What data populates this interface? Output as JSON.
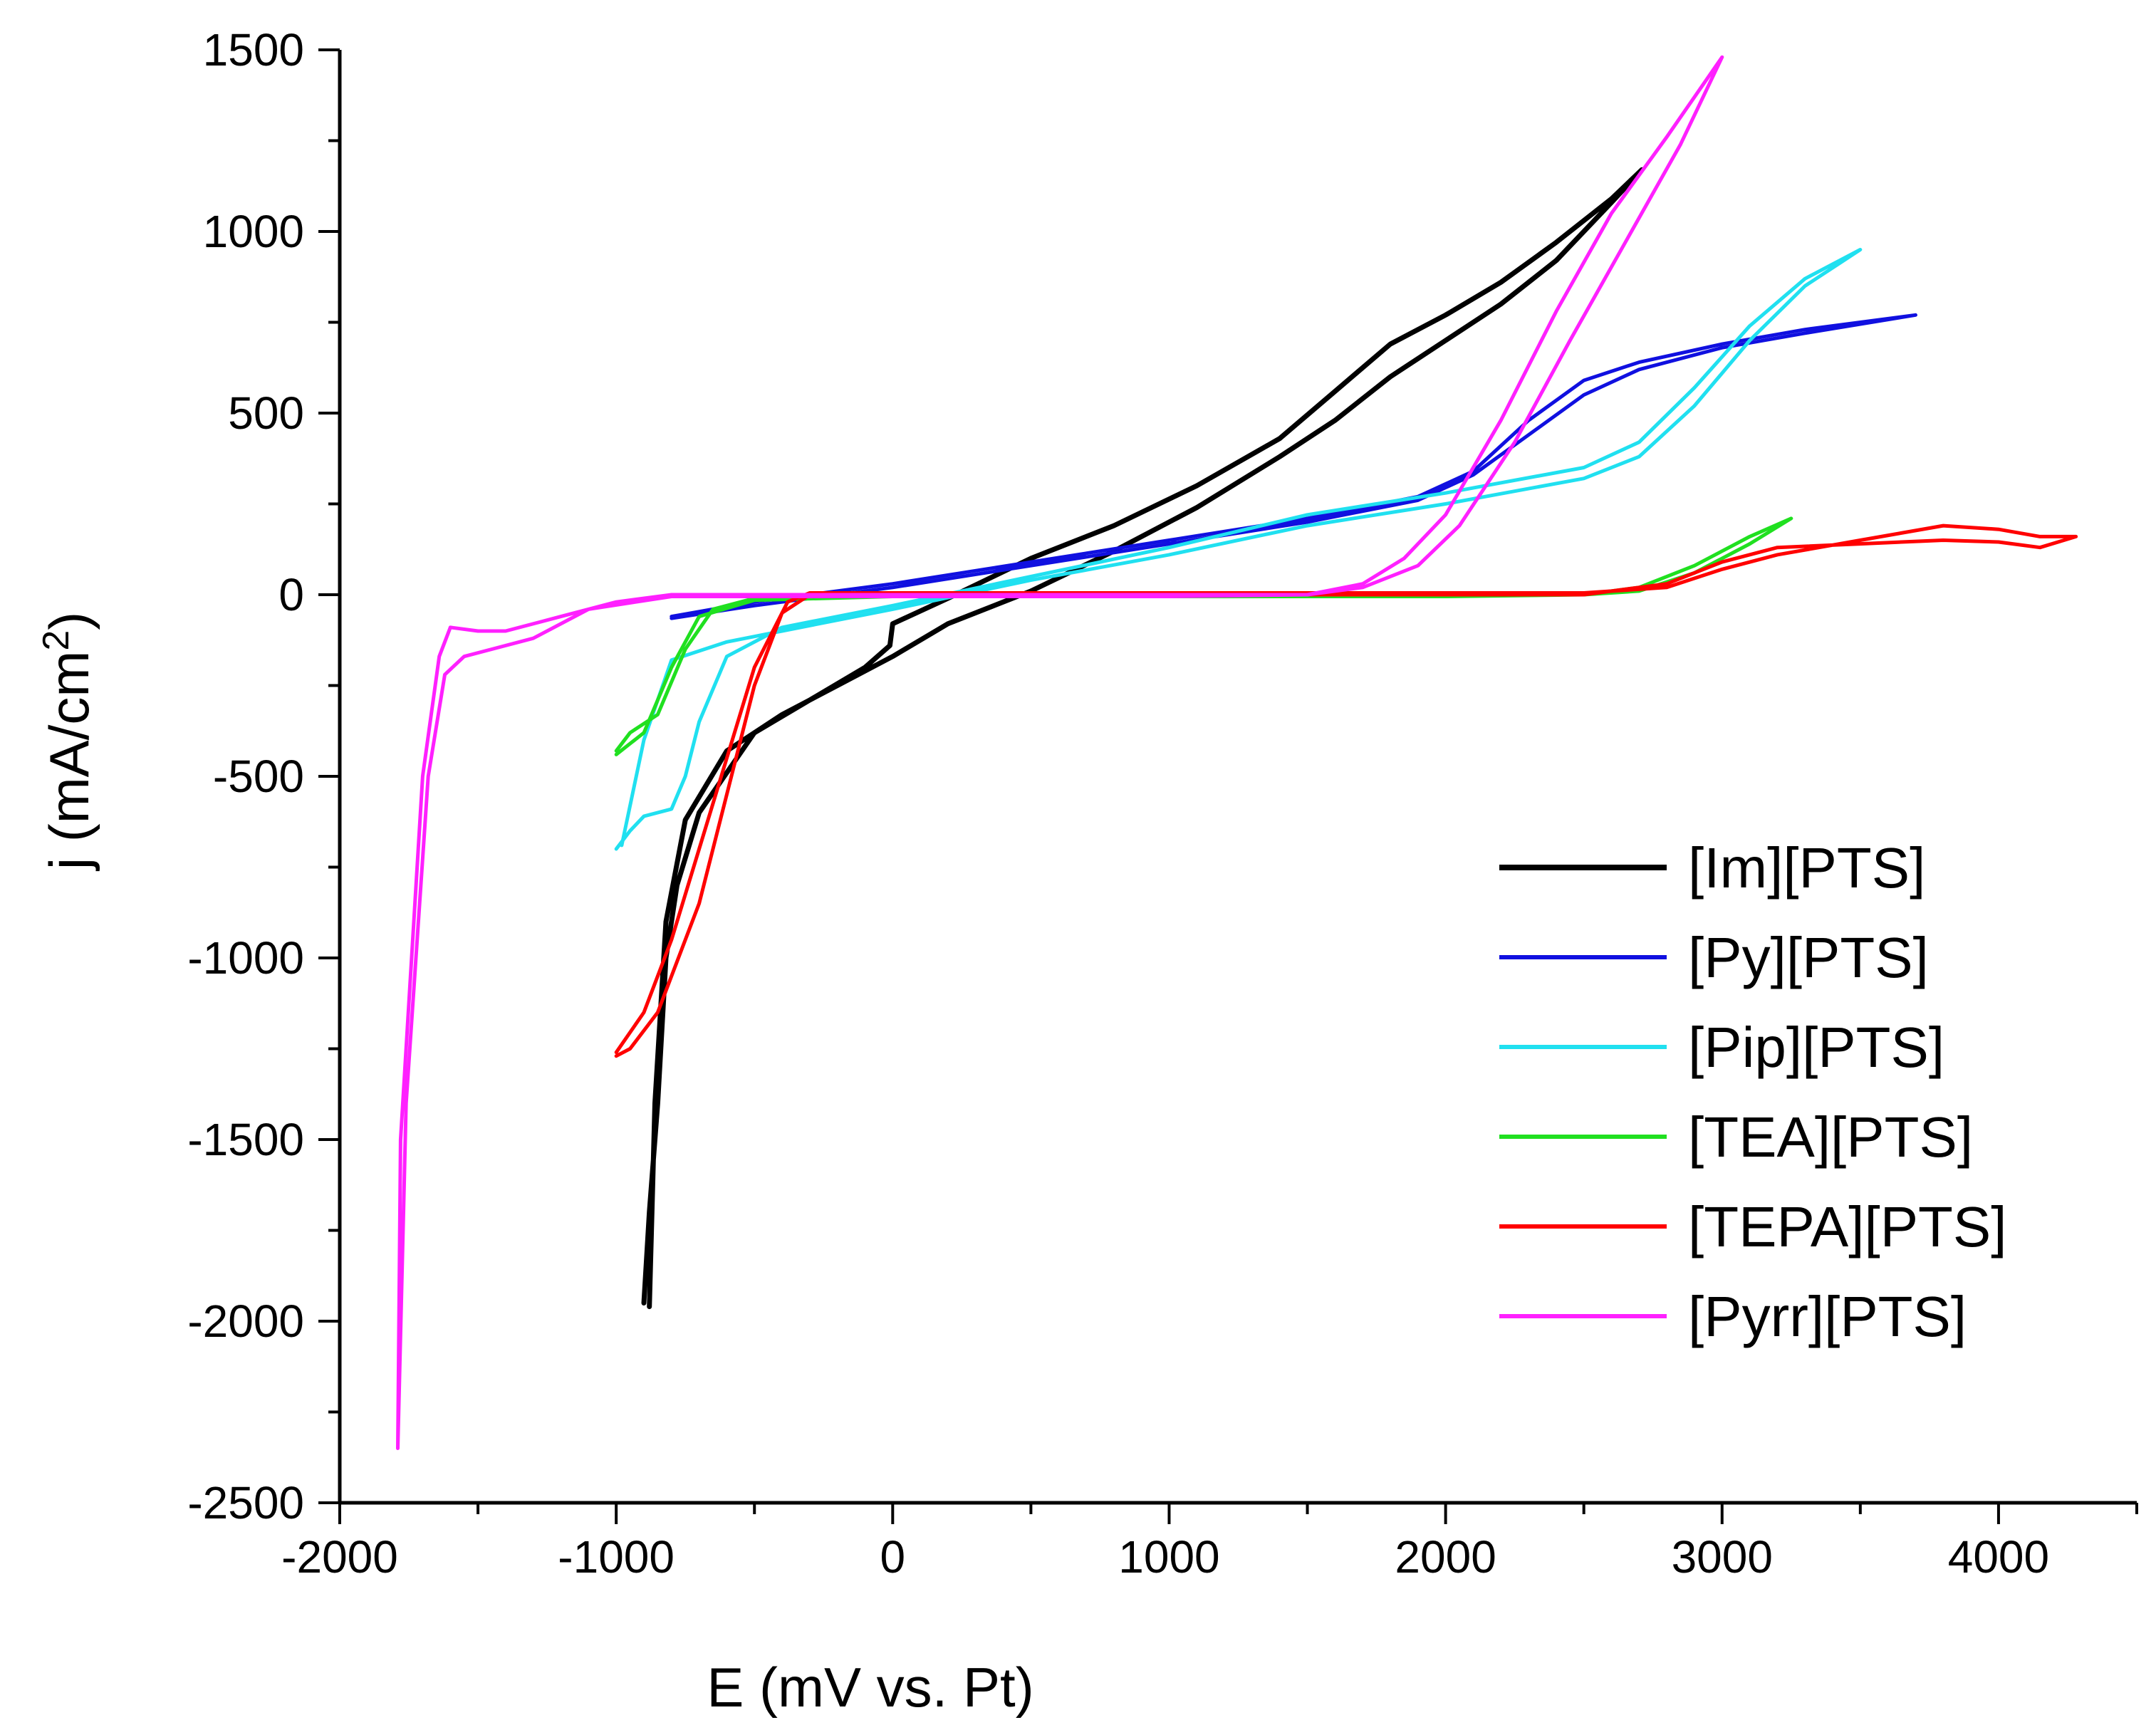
{
  "chart_data": {
    "type": "line",
    "title": "",
    "xlabel": "E (mV vs. Pt)",
    "ylabel": {
      "prefix": "j (mA/cm",
      "sup": "2",
      "suffix": ")"
    },
    "xlim": [
      -2000,
      4500
    ],
    "ylim": [
      -2500,
      1500
    ],
    "x_ticks": [
      -2000,
      -1000,
      0,
      1000,
      2000,
      3000,
      4000
    ],
    "y_ticks": [
      -2500,
      -2000,
      -1500,
      -1000,
      -500,
      0,
      500,
      1000,
      1500
    ],
    "legend_position": "right-lower",
    "series": [
      {
        "name": "[Im][PTS]",
        "color": "#000000",
        "width": 7,
        "points": [
          [
            -900,
            -1950
          ],
          [
            -880,
            -1700
          ],
          [
            -850,
            -1400
          ],
          [
            -820,
            -1000
          ],
          [
            -780,
            -800
          ],
          [
            -700,
            -600
          ],
          [
            -500,
            -380
          ],
          [
            -300,
            -290
          ],
          [
            -100,
            -200
          ],
          [
            -10,
            -140
          ],
          [
            0,
            -80
          ],
          [
            200,
            -10
          ],
          [
            500,
            100
          ],
          [
            800,
            190
          ],
          [
            1100,
            300
          ],
          [
            1400,
            430
          ],
          [
            1600,
            560
          ],
          [
            1800,
            690
          ],
          [
            2000,
            770
          ],
          [
            2200,
            860
          ],
          [
            2400,
            970
          ],
          [
            2600,
            1090
          ],
          [
            2710,
            1170
          ],
          [
            2600,
            1080
          ],
          [
            2400,
            920
          ],
          [
            2200,
            800
          ],
          [
            2000,
            700
          ],
          [
            1800,
            600
          ],
          [
            1600,
            480
          ],
          [
            1400,
            380
          ],
          [
            1100,
            240
          ],
          [
            800,
            120
          ],
          [
            500,
            10
          ],
          [
            200,
            -80
          ],
          [
            0,
            -170
          ],
          [
            -200,
            -250
          ],
          [
            -400,
            -330
          ],
          [
            -600,
            -430
          ],
          [
            -750,
            -620
          ],
          [
            -820,
            -900
          ],
          [
            -860,
            -1400
          ],
          [
            -880,
            -1960
          ]
        ]
      },
      {
        "name": "[Py][PTS]",
        "color": "#1010e0",
        "width": 5,
        "points": [
          [
            -800,
            -60
          ],
          [
            -500,
            -20
          ],
          [
            0,
            30
          ],
          [
            500,
            90
          ],
          [
            1000,
            150
          ],
          [
            1500,
            210
          ],
          [
            1900,
            270
          ],
          [
            2100,
            340
          ],
          [
            2300,
            480
          ],
          [
            2500,
            590
          ],
          [
            2700,
            640
          ],
          [
            3000,
            690
          ],
          [
            3300,
            730
          ],
          [
            3700,
            770
          ],
          [
            3300,
            720
          ],
          [
            3000,
            680
          ],
          [
            2700,
            620
          ],
          [
            2500,
            550
          ],
          [
            2300,
            440
          ],
          [
            2100,
            330
          ],
          [
            1900,
            260
          ],
          [
            1500,
            200
          ],
          [
            1000,
            140
          ],
          [
            500,
            80
          ],
          [
            0,
            20
          ],
          [
            -500,
            -30
          ],
          [
            -800,
            -65
          ]
        ]
      },
      {
        "name": "[Pip][PTS]",
        "color": "#20e0f0",
        "width": 5,
        "points": [
          [
            -1000,
            -700
          ],
          [
            -950,
            -650
          ],
          [
            -900,
            -610
          ],
          [
            -800,
            -590
          ],
          [
            -750,
            -500
          ],
          [
            -700,
            -350
          ],
          [
            -600,
            -170
          ],
          [
            -400,
            -90
          ],
          [
            0,
            -30
          ],
          [
            500,
            50
          ],
          [
            1000,
            130
          ],
          [
            1500,
            220
          ],
          [
            2000,
            280
          ],
          [
            2500,
            350
          ],
          [
            2700,
            420
          ],
          [
            2900,
            570
          ],
          [
            3100,
            740
          ],
          [
            3300,
            870
          ],
          [
            3500,
            950
          ],
          [
            3300,
            850
          ],
          [
            3100,
            700
          ],
          [
            2900,
            520
          ],
          [
            2700,
            380
          ],
          [
            2500,
            320
          ],
          [
            2000,
            250
          ],
          [
            1500,
            190
          ],
          [
            1000,
            110
          ],
          [
            500,
            40
          ],
          [
            0,
            -40
          ],
          [
            -400,
            -100
          ],
          [
            -600,
            -130
          ],
          [
            -800,
            -180
          ],
          [
            -900,
            -400
          ],
          [
            -980,
            -690
          ]
        ]
      },
      {
        "name": "[TEA][PTS]",
        "color": "#20e020",
        "width": 5,
        "points": [
          [
            -1000,
            -430
          ],
          [
            -950,
            -380
          ],
          [
            -850,
            -330
          ],
          [
            -750,
            -150
          ],
          [
            -650,
            -40
          ],
          [
            -500,
            -10
          ],
          [
            0,
            0
          ],
          [
            1000,
            0
          ],
          [
            2000,
            0
          ],
          [
            2500,
            0
          ],
          [
            2700,
            20
          ],
          [
            2900,
            80
          ],
          [
            3100,
            160
          ],
          [
            3250,
            210
          ],
          [
            3100,
            140
          ],
          [
            2900,
            60
          ],
          [
            2700,
            10
          ],
          [
            2500,
            0
          ],
          [
            2000,
            -5
          ],
          [
            1000,
            -5
          ],
          [
            0,
            -5
          ],
          [
            -500,
            -15
          ],
          [
            -700,
            -60
          ],
          [
            -800,
            -200
          ],
          [
            -900,
            -380
          ],
          [
            -1000,
            -440
          ]
        ]
      },
      {
        "name": "[TEPA][PTS]",
        "color": "#ff0000",
        "width": 5,
        "points": [
          [
            -1000,
            -1270
          ],
          [
            -950,
            -1250
          ],
          [
            -850,
            -1150
          ],
          [
            -700,
            -850
          ],
          [
            -600,
            -550
          ],
          [
            -500,
            -250
          ],
          [
            -400,
            -50
          ],
          [
            -300,
            0
          ],
          [
            500,
            0
          ],
          [
            1500,
            0
          ],
          [
            2500,
            0
          ],
          [
            2800,
            30
          ],
          [
            3000,
            90
          ],
          [
            3200,
            130
          ],
          [
            3500,
            140
          ],
          [
            3800,
            150
          ],
          [
            4000,
            145
          ],
          [
            4150,
            130
          ],
          [
            4280,
            160
          ],
          [
            4150,
            160
          ],
          [
            4000,
            180
          ],
          [
            3800,
            190
          ],
          [
            3500,
            150
          ],
          [
            3200,
            110
          ],
          [
            3000,
            70
          ],
          [
            2800,
            20
          ],
          [
            2500,
            5
          ],
          [
            1500,
            5
          ],
          [
            500,
            5
          ],
          [
            -300,
            5
          ],
          [
            -380,
            -20
          ],
          [
            -500,
            -200
          ],
          [
            -600,
            -450
          ],
          [
            -700,
            -700
          ],
          [
            -800,
            -950
          ],
          [
            -900,
            -1150
          ],
          [
            -1000,
            -1260
          ]
        ]
      },
      {
        "name": "[Pyrr][PTS]",
        "color": "#ff20ff",
        "width": 5,
        "points": [
          [
            -1790,
            -2350
          ],
          [
            -1780,
            -1500
          ],
          [
            -1700,
            -500
          ],
          [
            -1640,
            -170
          ],
          [
            -1600,
            -90
          ],
          [
            -1500,
            -100
          ],
          [
            -1400,
            -100
          ],
          [
            -1200,
            -60
          ],
          [
            -1000,
            -20
          ],
          [
            -800,
            0
          ],
          [
            0,
            0
          ],
          [
            1000,
            0
          ],
          [
            1500,
            0
          ],
          [
            1700,
            30
          ],
          [
            1850,
            100
          ],
          [
            2000,
            220
          ],
          [
            2200,
            480
          ],
          [
            2400,
            780
          ],
          [
            2600,
            1050
          ],
          [
            2800,
            1260
          ],
          [
            3000,
            1480
          ],
          [
            2850,
            1240
          ],
          [
            2650,
            970
          ],
          [
            2450,
            700
          ],
          [
            2250,
            420
          ],
          [
            2050,
            190
          ],
          [
            1900,
            80
          ],
          [
            1700,
            20
          ],
          [
            1500,
            0
          ],
          [
            1000,
            -5
          ],
          [
            0,
            -5
          ],
          [
            -800,
            -5
          ],
          [
            -1100,
            -40
          ],
          [
            -1300,
            -120
          ],
          [
            -1450,
            -150
          ],
          [
            -1550,
            -170
          ],
          [
            -1620,
            -220
          ],
          [
            -1680,
            -500
          ],
          [
            -1760,
            -1400
          ],
          [
            -1790,
            -2350
          ]
        ]
      }
    ]
  }
}
